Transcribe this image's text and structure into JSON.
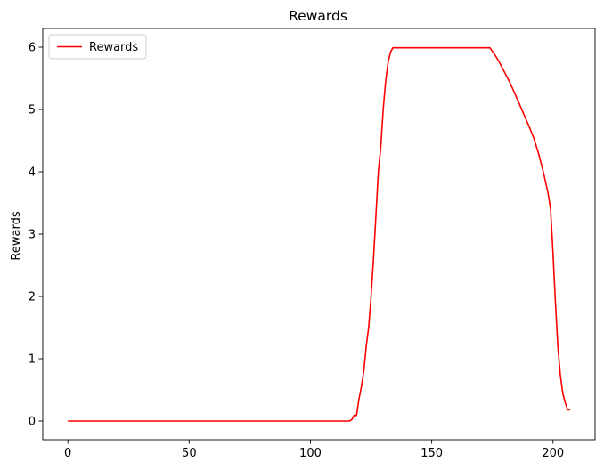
{
  "chart_data": {
    "type": "line",
    "title": "Rewards",
    "xlabel": "",
    "ylabel": "Rewards",
    "xlim": [
      -10.35,
      217.35
    ],
    "ylim": [
      -0.3,
      6.3
    ],
    "xticks": [
      0,
      50,
      100,
      150,
      200
    ],
    "yticks": [
      0,
      1,
      2,
      3,
      4,
      5,
      6
    ],
    "grid": false,
    "legend_position": "top-left",
    "series": [
      {
        "name": "Rewards",
        "color": "#ff0000",
        "x": [
          0,
          20,
          40,
          60,
          80,
          100,
          116,
          117,
          118,
          119,
          120,
          121,
          122,
          123,
          124,
          125,
          126,
          127,
          128,
          129,
          130,
          131,
          132,
          133,
          134,
          135,
          136,
          140,
          150,
          160,
          170,
          174,
          176,
          178,
          180,
          182,
          184,
          186,
          188,
          190,
          192,
          194,
          196,
          198,
          199,
          200,
          201,
          202,
          203,
          204,
          205,
          206,
          207
        ],
        "y": [
          0,
          0,
          0,
          0,
          0,
          0,
          0,
          0.02,
          0.09,
          0.09,
          0.35,
          0.55,
          0.8,
          1.2,
          1.5,
          2.0,
          2.6,
          3.3,
          4.0,
          4.4,
          5.0,
          5.45,
          5.75,
          5.92,
          5.99,
          5.99,
          5.99,
          5.99,
          5.99,
          5.99,
          5.99,
          5.99,
          5.88,
          5.75,
          5.6,
          5.45,
          5.28,
          5.1,
          4.92,
          4.74,
          4.55,
          4.3,
          4.0,
          3.65,
          3.4,
          2.7,
          1.9,
          1.2,
          0.75,
          0.45,
          0.3,
          0.18,
          0.18
        ]
      }
    ]
  }
}
